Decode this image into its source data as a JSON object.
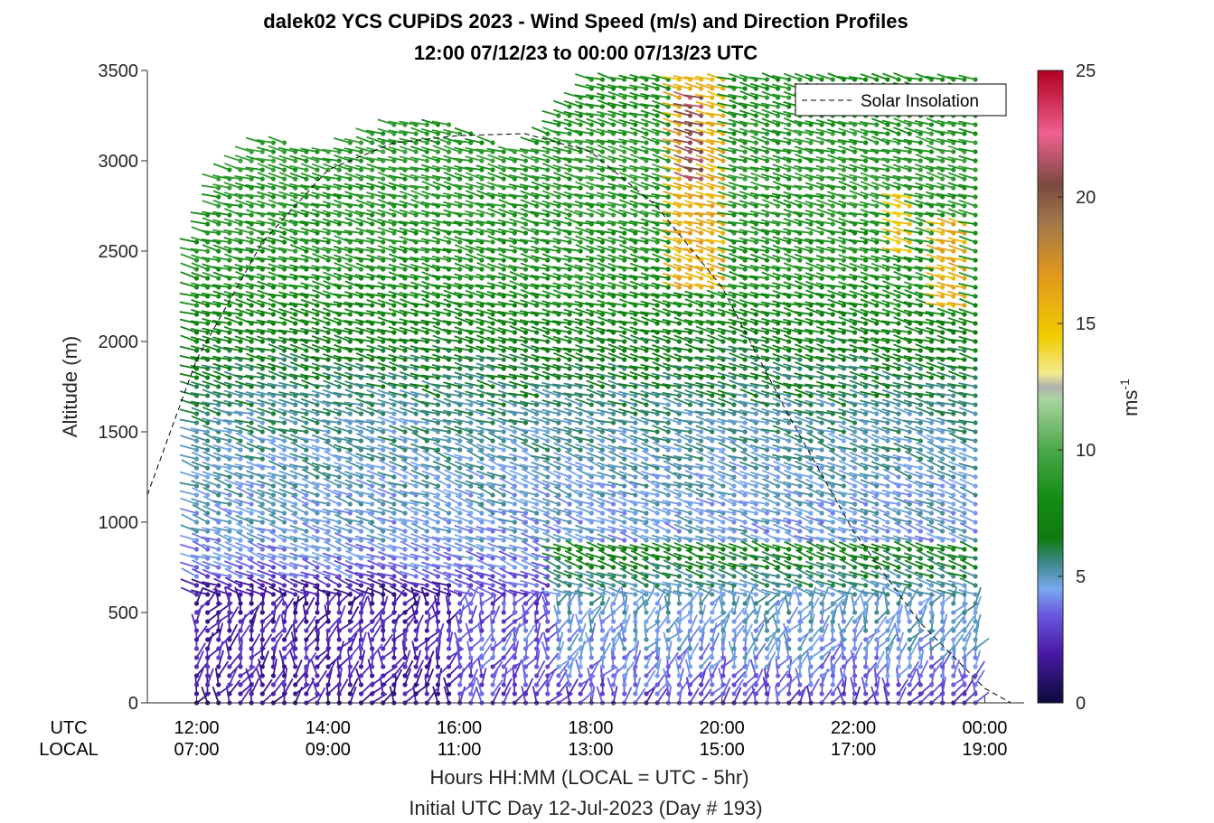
{
  "chart_data": {
    "type": "wind-barb-profile",
    "title": "dalek02 YCS CUPiDS 2023 - Wind Speed (m/s) and Direction Profiles",
    "subtitle": "12:00 07/12/23 to 00:00 07/13/23  UTC",
    "ylabel": "Altitude (m)",
    "xlabel": "Hours HH:MM  (LOCAL = UTC - 5hr)",
    "xlabel2": "Initial UTC Day 12-Jul-2023 (Day # 193)",
    "x_row_labels": {
      "utc": "UTC",
      "local": "LOCAL"
    },
    "ylim": [
      0,
      3500
    ],
    "yticks": [
      "0",
      "500",
      "1000",
      "1500",
      "2000",
      "2500",
      "3000",
      "3500"
    ],
    "xlim_hours_utc": [
      11.25,
      24.6
    ],
    "xticks": [
      {
        "hour": 12,
        "utc": "12:00",
        "local": "07:00"
      },
      {
        "hour": 14,
        "utc": "14:00",
        "local": "09:00"
      },
      {
        "hour": 16,
        "utc": "16:00",
        "local": "11:00"
      },
      {
        "hour": 18,
        "utc": "18:00",
        "local": "13:00"
      },
      {
        "hour": 20,
        "utc": "20:00",
        "local": "15:00"
      },
      {
        "hour": 22,
        "utc": "22:00",
        "local": "17:00"
      },
      {
        "hour": 24,
        "utc": "00:00",
        "local": "19:00"
      }
    ],
    "colorbar": {
      "label": "ms",
      "label_superscript": "-1",
      "range": [
        0,
        25
      ],
      "ticks": [
        "0",
        "5",
        "10",
        "15",
        "20",
        "25"
      ],
      "colors": [
        {
          "v": 0,
          "c": "#0b0b3b"
        },
        {
          "v": 2,
          "c": "#4a1aa8"
        },
        {
          "v": 3.5,
          "c": "#6a5ae0"
        },
        {
          "v": 4.5,
          "c": "#7aa8f0"
        },
        {
          "v": 5.5,
          "c": "#3f8a8e"
        },
        {
          "v": 6.5,
          "c": "#0f7a0f"
        },
        {
          "v": 8,
          "c": "#128c12"
        },
        {
          "v": 10,
          "c": "#4aa84a"
        },
        {
          "v": 12,
          "c": "#a9d4a0"
        },
        {
          "v": 12.5,
          "c": "#b0b0b0"
        },
        {
          "v": 13,
          "c": "#f2ea90"
        },
        {
          "v": 14.5,
          "c": "#f0cc00"
        },
        {
          "v": 17,
          "c": "#e0961e"
        },
        {
          "v": 19,
          "c": "#a0784a"
        },
        {
          "v": 20.5,
          "c": "#7a4a40"
        },
        {
          "v": 22.5,
          "c": "#f06090"
        },
        {
          "v": 25,
          "c": "#b00020"
        }
      ]
    },
    "legend": {
      "label": "Solar Insolation",
      "style": "dashed",
      "position": "top-right"
    },
    "solar_insolation_curve": [
      [
        11.25,
        1150
      ],
      [
        12,
        1900
      ],
      [
        13,
        2550
      ],
      [
        14,
        2950
      ],
      [
        15,
        3100
      ],
      [
        16,
        3140
      ],
      [
        17,
        3150
      ],
      [
        18,
        3050
      ],
      [
        19,
        2750
      ],
      [
        20,
        2300
      ],
      [
        21,
        1600
      ],
      [
        22,
        950
      ],
      [
        23,
        450
      ],
      [
        24,
        80
      ],
      [
        24.4,
        0
      ],
      [
        24.6,
        0
      ]
    ],
    "profiles": {
      "time_start": 12.0,
      "time_end": 24.0,
      "time_step": 0.167,
      "altitude_step_m": 50,
      "top_altitude_by_hour": [
        [
          12.0,
          2550
        ],
        [
          12.3,
          2900
        ],
        [
          13,
          3150
        ],
        [
          14,
          3050
        ],
        [
          15,
          3200
        ],
        [
          16,
          3200
        ],
        [
          17,
          3050
        ],
        [
          18,
          3450
        ],
        [
          19,
          3450
        ],
        [
          20,
          3450
        ],
        [
          21,
          3450
        ],
        [
          22,
          3450
        ],
        [
          23,
          3450
        ],
        [
          24,
          3450
        ]
      ],
      "speed_by_altitude_m": [
        [
          0,
          3
        ],
        [
          300,
          3.5
        ],
        [
          600,
          3
        ],
        [
          900,
          4.5
        ],
        [
          1300,
          5
        ],
        [
          1600,
          5.5
        ],
        [
          1900,
          6.5
        ],
        [
          2300,
          8
        ],
        [
          2700,
          8.5
        ],
        [
          3000,
          9
        ],
        [
          3450,
          8
        ]
      ],
      "jet_regions": [
        {
          "hours": [
            19.3,
            20.1
          ],
          "alts": [
            2300,
            3450
          ],
          "speed": 16
        },
        {
          "hours": [
            19.4,
            19.8
          ],
          "alts": [
            2900,
            3350
          ],
          "speed": 21
        },
        {
          "hours": [
            22.6,
            23.0
          ],
          "alts": [
            2500,
            2800
          ],
          "speed": 15
        },
        {
          "hours": [
            23.3,
            23.8
          ],
          "alts": [
            2200,
            2650
          ],
          "speed": 16
        }
      ]
    }
  }
}
